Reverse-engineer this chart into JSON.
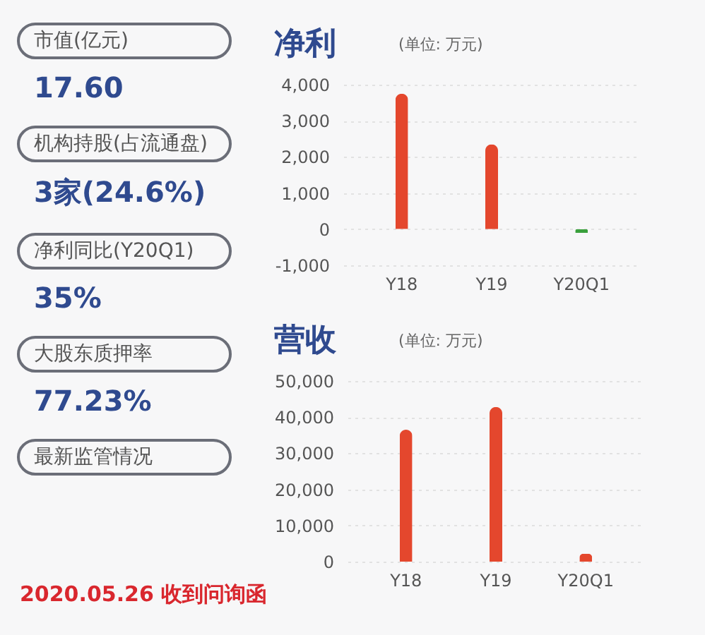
{
  "chart_data": [
    {
      "type": "other",
      "annotations": [
        "市值(亿元)",
        "17.60",
        "机构持股(占流通盘)",
        "3家(24.6%)",
        "净利同比(Y20Q1)",
        "35%",
        "大股东质押率",
        "77.23%",
        "最新监管情况",
        "2020.05.26 收到问询函"
      ]
    },
    {
      "type": "bar",
      "title": "净利",
      "subtitle": "(单位: 万元)",
      "categories": [
        "Y18",
        "Y19",
        "Y20Q1"
      ],
      "values": [
        3750,
        2350,
        -100
      ],
      "colors": [
        "#e4472d",
        "#e4472d",
        "#3aa03c"
      ],
      "ylim": [
        -1000,
        4000
      ],
      "yticks": [
        {
          "value": -1000,
          "label": "-1,000"
        },
        0,
        {
          "value": 1000,
          "label": "1,000"
        },
        {
          "value": 2000,
          "label": "2,000"
        },
        {
          "value": 3000,
          "label": "3,000"
        },
        {
          "value": 4000,
          "label": "4,000"
        }
      ],
      "grid": "y"
    },
    {
      "type": "bar",
      "title": "营收",
      "subtitle": "(单位: 万元)",
      "categories": [
        "Y18",
        "Y19",
        "Y20Q1"
      ],
      "values": [
        36500,
        42800,
        2200
      ],
      "colors": [
        "#e4472d",
        "#e4472d",
        "#e4472d"
      ],
      "ylim": [
        0,
        50000
      ],
      "yticks": [
        0,
        {
          "value": 10000,
          "label": "10,000"
        },
        {
          "value": 20000,
          "label": "20,000"
        },
        {
          "value": 30000,
          "label": "30,000"
        },
        {
          "value": 40000,
          "label": "40,000"
        },
        {
          "value": 50000,
          "label": "50,000"
        }
      ],
      "grid": "y"
    }
  ]
}
